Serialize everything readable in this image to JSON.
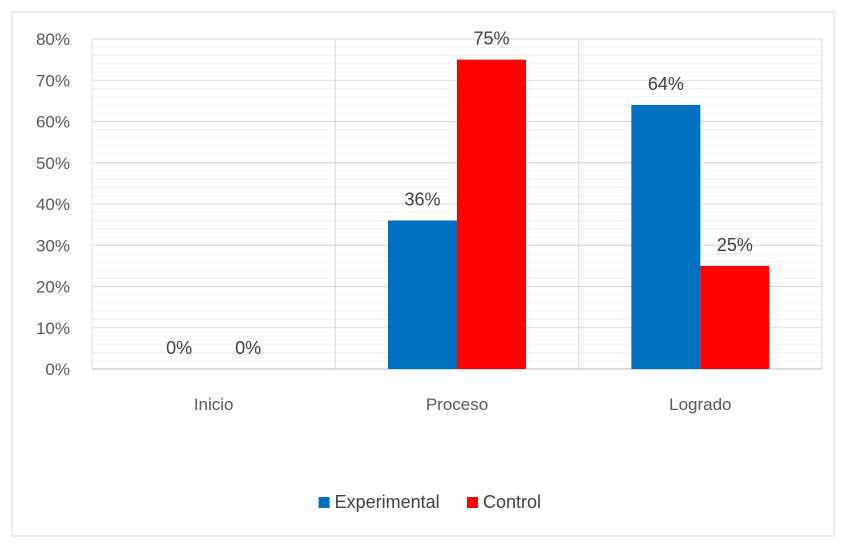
{
  "chart_data": {
    "type": "bar",
    "categories": [
      "Inicio",
      "Proceso",
      "Logrado"
    ],
    "series": [
      {
        "name": "Experimental",
        "values": [
          0,
          36,
          64
        ],
        "labels": [
          "0%",
          "36%",
          "64%"
        ],
        "color": "#0070C0"
      },
      {
        "name": "Control",
        "values": [
          0,
          75,
          25
        ],
        "labels": [
          "0%",
          "75%",
          "25%"
        ],
        "color": "#FF0000"
      }
    ],
    "yticks": [
      "0%",
      "10%",
      "20%",
      "30%",
      "40%",
      "50%",
      "60%",
      "70%",
      "80%"
    ],
    "ylim": [
      0,
      80
    ],
    "grid": true,
    "legend": "bottom",
    "title": "",
    "xlabel": "",
    "ylabel": ""
  }
}
